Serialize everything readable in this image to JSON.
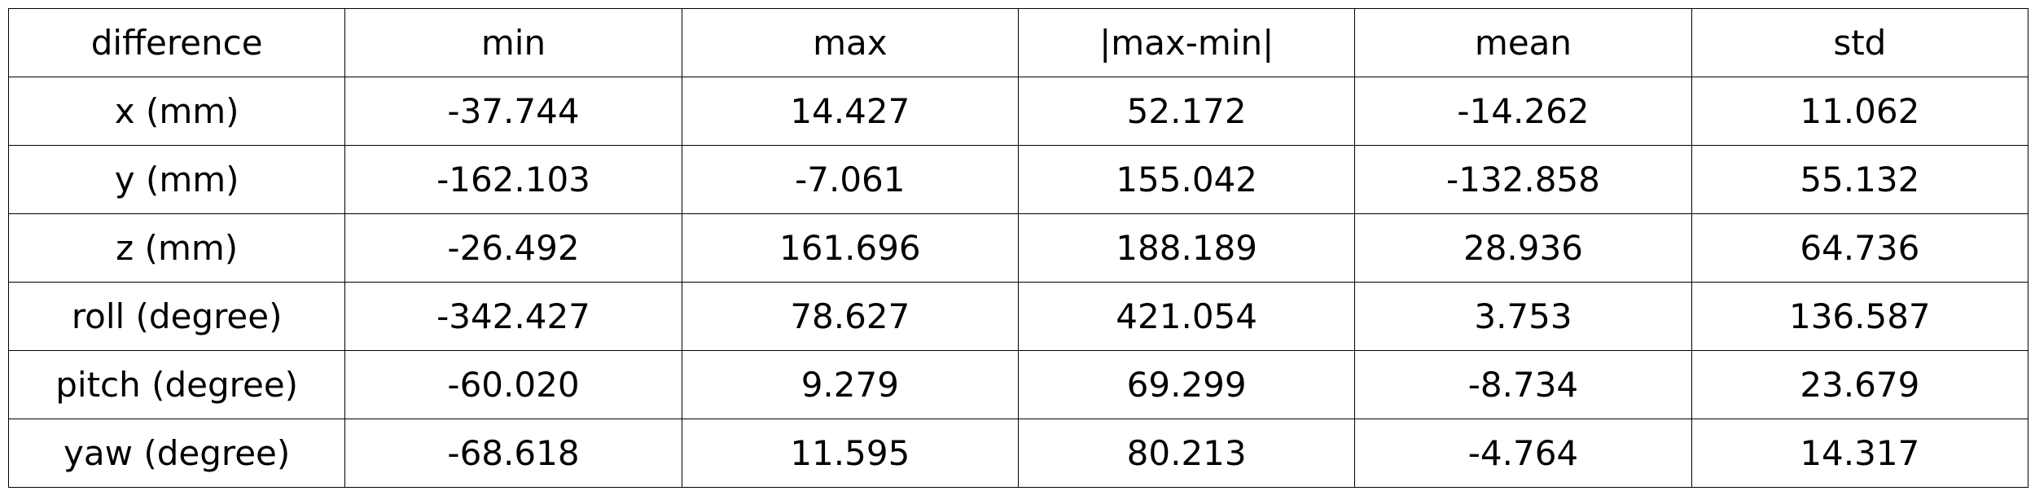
{
  "chart_data": {
    "type": "table",
    "columns": [
      "difference",
      "min",
      "max",
      "|max-min|",
      "mean",
      "std"
    ],
    "rows": [
      [
        "x (mm)",
        "-37.744",
        "14.427",
        "52.172",
        "-14.262",
        "11.062"
      ],
      [
        "y (mm)",
        "-162.103",
        "-7.061",
        "155.042",
        "-132.858",
        "55.132"
      ],
      [
        "z (mm)",
        "-26.492",
        "161.696",
        "188.189",
        "28.936",
        "64.736"
      ],
      [
        "roll (degree)",
        "-342.427",
        "78.627",
        "421.054",
        "3.753",
        "136.587"
      ],
      [
        "pitch (degree)",
        "-60.020",
        "9.279",
        "69.299",
        "-8.734",
        "23.679"
      ],
      [
        "yaw (degree)",
        "-68.618",
        "11.595",
        "80.213",
        "-4.764",
        "14.317"
      ]
    ]
  }
}
